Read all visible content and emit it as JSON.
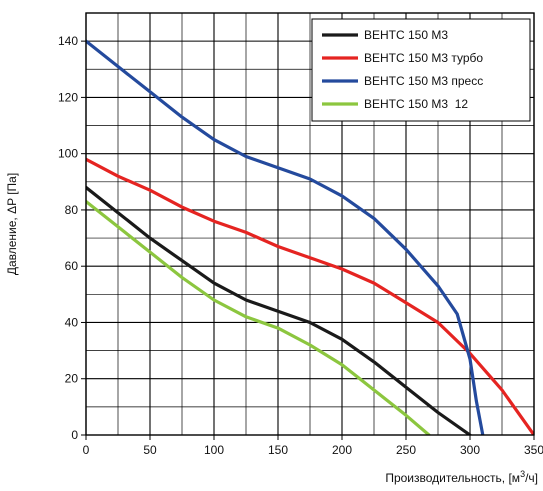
{
  "chart_data": {
    "type": "line",
    "xlabel_main": "Производительность, [м",
    "xlabel_sup": "3",
    "xlabel_tail": "/ч]",
    "ylabel": "Давление, ΔP [Па]",
    "xlim": [
      0,
      350
    ],
    "ylim": [
      0,
      150
    ],
    "xticks": [
      "0",
      "50",
      "100",
      "150",
      "200",
      "250",
      "300",
      "350"
    ],
    "yticks": [
      "0",
      "20",
      "40",
      "60",
      "80",
      "100",
      "120",
      "140"
    ],
    "grid": true,
    "legend_position": "top-right",
    "series": [
      {
        "name": "ВЕНТС 150 М3",
        "color": "#1a1a1a",
        "x": [
          0,
          25,
          50,
          75,
          100,
          125,
          150,
          175,
          200,
          225,
          250,
          275,
          300
        ],
        "y": [
          88,
          79,
          70,
          62,
          54,
          48,
          44,
          40,
          34,
          26,
          17,
          8,
          0
        ]
      },
      {
        "name": "ВЕНТС 150 М3 турбо",
        "color": "#e52421",
        "x": [
          0,
          25,
          50,
          75,
          100,
          125,
          150,
          175,
          200,
          225,
          250,
          275,
          300,
          325,
          350
        ],
        "y": [
          98,
          92,
          87,
          81,
          76,
          72,
          67,
          63,
          59,
          54,
          47,
          40,
          29,
          16,
          0
        ]
      },
      {
        "name": "ВЕНТС 150 М3 пресс",
        "color": "#244a9d",
        "x": [
          0,
          25,
          50,
          75,
          100,
          125,
          150,
          175,
          200,
          225,
          250,
          275,
          290,
          300,
          305,
          310
        ],
        "y": [
          140,
          131,
          122,
          113,
          105,
          99,
          95,
          91,
          85,
          77,
          66,
          53,
          43,
          27,
          12,
          0
        ]
      },
      {
        "name": "ВЕНТС 150 М3  12",
        "color": "#8cc63f",
        "x": [
          0,
          25,
          50,
          75,
          100,
          125,
          150,
          175,
          200,
          225,
          250,
          268
        ],
        "y": [
          83,
          74,
          65,
          56,
          48,
          42,
          38,
          32,
          25,
          16,
          7,
          0
        ]
      }
    ]
  }
}
